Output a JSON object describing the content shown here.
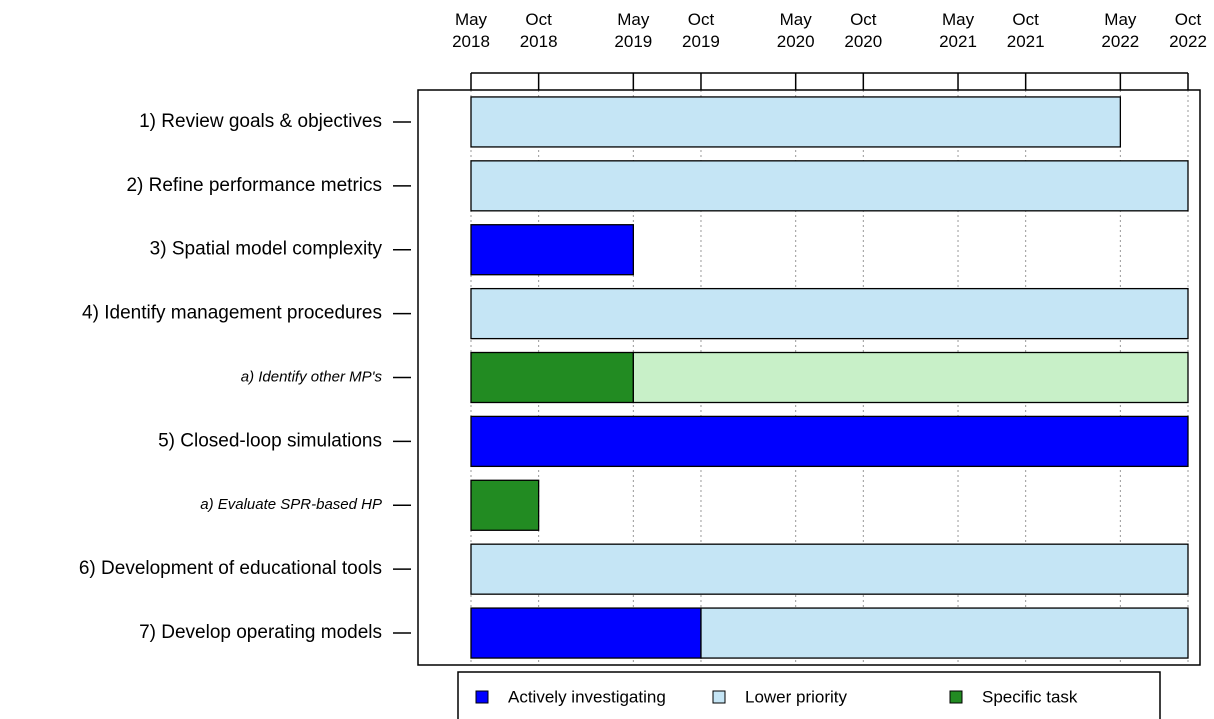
{
  "chart_data": {
    "type": "gantt",
    "xlim": [
      "2018-05",
      "2022-10"
    ],
    "xticks": [
      {
        "value": "2018-05",
        "label": "May 2018"
      },
      {
        "value": "2018-10",
        "label": "Oct 2018"
      },
      {
        "value": "2019-05",
        "label": "May 2019"
      },
      {
        "value": "2019-10",
        "label": "Oct 2019"
      },
      {
        "value": "2020-05",
        "label": "May 2020"
      },
      {
        "value": "2020-10",
        "label": "Oct 2020"
      },
      {
        "value": "2021-05",
        "label": "May 2021"
      },
      {
        "value": "2021-10",
        "label": "Oct 2021"
      },
      {
        "value": "2022-05",
        "label": "May 2022"
      },
      {
        "value": "2022-10",
        "label": "Oct 2022"
      }
    ],
    "grid": true,
    "tasks": [
      {
        "label": "1) Review goals & objectives",
        "segments": [
          {
            "start": "2018-05",
            "end": "2022-05",
            "color": "#c5e5f5"
          }
        ]
      },
      {
        "label": "2) Refine performance metrics",
        "segments": [
          {
            "start": "2018-05",
            "end": "2022-10",
            "color": "#c5e5f5"
          }
        ]
      },
      {
        "label": "3) Spatial model complexity",
        "segments": [
          {
            "start": "2018-05",
            "end": "2019-05",
            "color": "#0000ff"
          }
        ]
      },
      {
        "label": "4) Identify management procedures",
        "segments": [
          {
            "start": "2018-05",
            "end": "2022-10",
            "color": "#c5e5f5"
          }
        ]
      },
      {
        "label": "a) Identify other MP's",
        "italic": true,
        "segments": [
          {
            "start": "2018-05",
            "end": "2019-05",
            "color": "#228b22"
          },
          {
            "start": "2019-05",
            "end": "2022-10",
            "color": "#c8f0c8"
          }
        ]
      },
      {
        "label": "5) Closed-loop simulations",
        "segments": [
          {
            "start": "2018-05",
            "end": "2022-10",
            "color": "#0000ff"
          }
        ]
      },
      {
        "label": "a) Evaluate SPR-based HP",
        "italic": true,
        "segments": [
          {
            "start": "2018-05",
            "end": "2018-10",
            "color": "#228b22"
          }
        ]
      },
      {
        "label": "6) Development of educational tools",
        "segments": [
          {
            "start": "2018-05",
            "end": "2022-10",
            "color": "#c5e5f5"
          }
        ]
      },
      {
        "label": "7) Develop operating models",
        "segments": [
          {
            "start": "2018-05",
            "end": "2019-10",
            "color": "#0000ff"
          },
          {
            "start": "2019-10",
            "end": "2022-10",
            "color": "#c5e5f5"
          }
        ]
      }
    ],
    "legend": [
      {
        "name": "Actively investigating",
        "color": "#0000ff"
      },
      {
        "name": "Lower priority",
        "color": "#c5e5f5"
      },
      {
        "name": "Specific task",
        "color": "#228b22"
      }
    ]
  }
}
